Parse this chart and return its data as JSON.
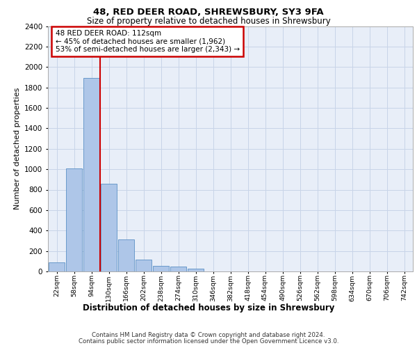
{
  "title1": "48, RED DEER ROAD, SHREWSBURY, SY3 9FA",
  "title2": "Size of property relative to detached houses in Shrewsbury",
  "xlabel": "Distribution of detached houses by size in Shrewsbury",
  "ylabel": "Number of detached properties",
  "bar_labels": [
    "22sqm",
    "58sqm",
    "94sqm",
    "130sqm",
    "166sqm",
    "202sqm",
    "238sqm",
    "274sqm",
    "310sqm",
    "346sqm",
    "382sqm",
    "418sqm",
    "454sqm",
    "490sqm",
    "526sqm",
    "562sqm",
    "598sqm",
    "634sqm",
    "670sqm",
    "706sqm",
    "742sqm"
  ],
  "bar_values": [
    90,
    1010,
    1890,
    860,
    315,
    115,
    55,
    48,
    28,
    0,
    0,
    0,
    0,
    0,
    0,
    0,
    0,
    0,
    0,
    0,
    0
  ],
  "bar_color": "#aec6e8",
  "bar_edge_color": "#5a8fc4",
  "grid_color": "#c8d4e8",
  "bg_color": "#e8eef8",
  "property_line_x": 112,
  "annotation_line1": "48 RED DEER ROAD: 112sqm",
  "annotation_line2": "← 45% of detached houses are smaller (1,962)",
  "annotation_line3": "53% of semi-detached houses are larger (2,343) →",
  "annotation_box_color": "#cc0000",
  "ylim": [
    0,
    2400
  ],
  "yticks": [
    0,
    200,
    400,
    600,
    800,
    1000,
    1200,
    1400,
    1600,
    1800,
    2000,
    2200,
    2400
  ],
  "footer1": "Contains HM Land Registry data © Crown copyright and database right 2024.",
  "footer2": "Contains public sector information licensed under the Open Government Licence v3.0."
}
